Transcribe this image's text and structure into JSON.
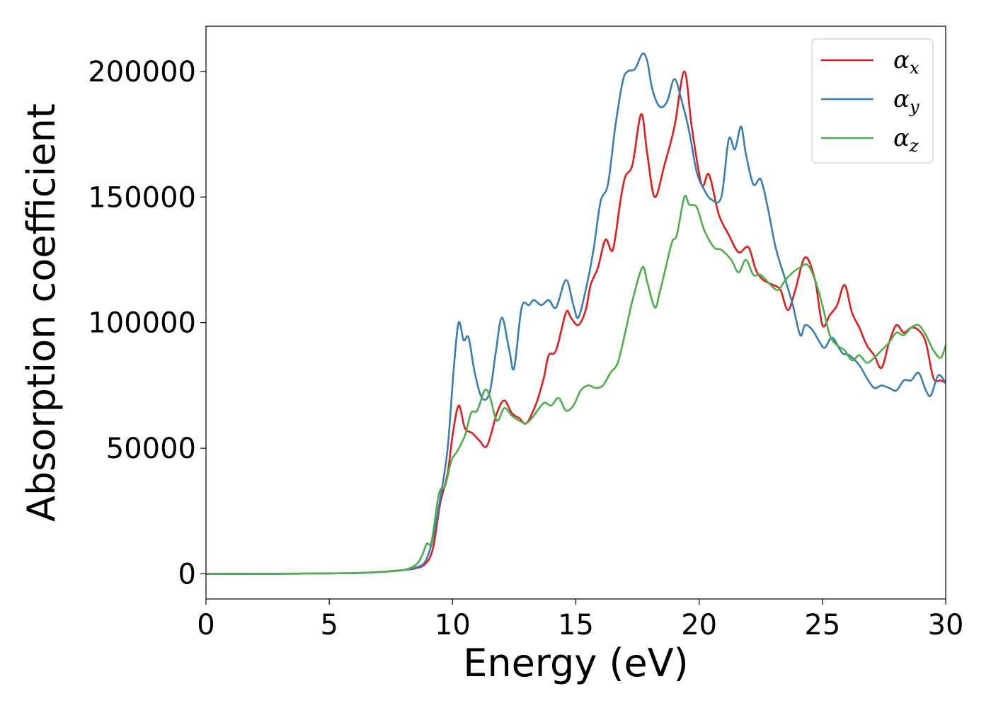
{
  "chart_data": {
    "type": "line",
    "title": "",
    "xlabel": "Energy (eV)",
    "ylabel": "Absorption coefficient",
    "xlim": [
      0,
      30
    ],
    "ylim": [
      -10000,
      218000
    ],
    "xticks": [
      0,
      5,
      10,
      15,
      20,
      25,
      30
    ],
    "yticks": [
      0,
      50000,
      100000,
      150000,
      200000
    ],
    "grid": false,
    "legend_position": "top-right",
    "series": [
      {
        "name": "α_x",
        "label_main": "α",
        "label_sub": "x",
        "color": "#e41a1c",
        "points": [
          [
            0,
            0
          ],
          [
            2,
            0
          ],
          [
            4,
            100
          ],
          [
            6,
            300
          ],
          [
            7,
            700
          ],
          [
            8,
            1500
          ],
          [
            8.5,
            2200
          ],
          [
            8.9,
            4000
          ],
          [
            9.2,
            10000
          ],
          [
            9.5,
            28000
          ],
          [
            9.8,
            40000
          ],
          [
            10.0,
            55000
          ],
          [
            10.25,
            67000
          ],
          [
            10.5,
            58000
          ],
          [
            10.8,
            56000
          ],
          [
            11.1,
            53000
          ],
          [
            11.4,
            51000
          ],
          [
            11.8,
            64000
          ],
          [
            12.1,
            69000
          ],
          [
            12.4,
            64000
          ],
          [
            12.7,
            62000
          ],
          [
            13.0,
            60000
          ],
          [
            13.4,
            68000
          ],
          [
            13.7,
            78000
          ],
          [
            13.9,
            87000
          ],
          [
            14.2,
            89000
          ],
          [
            14.6,
            104000
          ],
          [
            14.8,
            102000
          ],
          [
            15.1,
            99000
          ],
          [
            15.4,
            105000
          ],
          [
            15.6,
            115000
          ],
          [
            15.9,
            122000
          ],
          [
            16.2,
            133000
          ],
          [
            16.5,
            129000
          ],
          [
            16.8,
            148000
          ],
          [
            17.0,
            158000
          ],
          [
            17.3,
            163000
          ],
          [
            17.65,
            183000
          ],
          [
            17.9,
            167000
          ],
          [
            18.2,
            150000
          ],
          [
            18.6,
            163000
          ],
          [
            19.0,
            178000
          ],
          [
            19.4,
            200000
          ],
          [
            19.7,
            178000
          ],
          [
            20.1,
            155000
          ],
          [
            20.4,
            159000
          ],
          [
            20.8,
            143000
          ],
          [
            21.2,
            135000
          ],
          [
            21.6,
            128000
          ],
          [
            22.0,
            130000
          ],
          [
            22.3,
            121000
          ],
          [
            22.6,
            117000
          ],
          [
            23.0,
            115000
          ],
          [
            23.3,
            113000
          ],
          [
            23.6,
            105000
          ],
          [
            23.9,
            113000
          ],
          [
            24.3,
            126000
          ],
          [
            24.7,
            117000
          ],
          [
            25.0,
            99000
          ],
          [
            25.3,
            103000
          ],
          [
            25.6,
            107000
          ],
          [
            25.9,
            115000
          ],
          [
            26.2,
            104000
          ],
          [
            26.5,
            98000
          ],
          [
            26.8,
            91000
          ],
          [
            27.1,
            87000
          ],
          [
            27.4,
            82000
          ],
          [
            27.7,
            92000
          ],
          [
            28.0,
            99000
          ],
          [
            28.3,
            96000
          ],
          [
            28.6,
            98000
          ],
          [
            28.9,
            97000
          ],
          [
            29.2,
            92000
          ],
          [
            29.5,
            78000
          ],
          [
            29.8,
            77000
          ],
          [
            30.0,
            76000
          ]
        ]
      },
      {
        "name": "α_y",
        "label_main": "α",
        "label_sub": "y",
        "color": "#377eb8",
        "points": [
          [
            0,
            0
          ],
          [
            2,
            0
          ],
          [
            4,
            100
          ],
          [
            6,
            300
          ],
          [
            7,
            700
          ],
          [
            8,
            1500
          ],
          [
            8.5,
            2500
          ],
          [
            8.9,
            5000
          ],
          [
            9.2,
            14000
          ],
          [
            9.5,
            30000
          ],
          [
            9.8,
            50000
          ],
          [
            10.05,
            82000
          ],
          [
            10.25,
            100000
          ],
          [
            10.45,
            93000
          ],
          [
            10.65,
            94000
          ],
          [
            10.9,
            80000
          ],
          [
            11.2,
            70000
          ],
          [
            11.5,
            72000
          ],
          [
            11.75,
            88000
          ],
          [
            12.0,
            102000
          ],
          [
            12.3,
            89000
          ],
          [
            12.5,
            82000
          ],
          [
            12.8,
            106000
          ],
          [
            13.1,
            107000
          ],
          [
            13.3,
            109000
          ],
          [
            13.6,
            107000
          ],
          [
            13.9,
            109000
          ],
          [
            14.2,
            106000
          ],
          [
            14.6,
            117000
          ],
          [
            14.9,
            107000
          ],
          [
            15.1,
            102000
          ],
          [
            15.4,
            113000
          ],
          [
            15.7,
            128000
          ],
          [
            16.0,
            148000
          ],
          [
            16.3,
            155000
          ],
          [
            16.6,
            178000
          ],
          [
            16.9,
            196000
          ],
          [
            17.1,
            200000
          ],
          [
            17.4,
            201000
          ],
          [
            17.7,
            207000
          ],
          [
            17.9,
            204000
          ],
          [
            18.1,
            193000
          ],
          [
            18.4,
            186000
          ],
          [
            18.7,
            188000
          ],
          [
            19.0,
            197000
          ],
          [
            19.3,
            188000
          ],
          [
            19.6,
            176000
          ],
          [
            19.9,
            160000
          ],
          [
            20.2,
            153000
          ],
          [
            20.5,
            149000
          ],
          [
            20.9,
            150000
          ],
          [
            21.2,
            173000
          ],
          [
            21.45,
            169000
          ],
          [
            21.7,
            178000
          ],
          [
            21.9,
            167000
          ],
          [
            22.2,
            155000
          ],
          [
            22.5,
            157000
          ],
          [
            22.8,
            145000
          ],
          [
            23.1,
            130000
          ],
          [
            23.5,
            117000
          ],
          [
            23.8,
            107000
          ],
          [
            24.1,
            95000
          ],
          [
            24.3,
            99000
          ],
          [
            24.6,
            97000
          ],
          [
            24.9,
            92000
          ],
          [
            25.1,
            90000
          ],
          [
            25.4,
            94000
          ],
          [
            25.8,
            88000
          ],
          [
            26.1,
            87000
          ],
          [
            26.5,
            83000
          ],
          [
            26.8,
            78000
          ],
          [
            27.1,
            74000
          ],
          [
            27.4,
            75000
          ],
          [
            27.7,
            74000
          ],
          [
            28.0,
            73000
          ],
          [
            28.3,
            77000
          ],
          [
            28.6,
            77000
          ],
          [
            28.9,
            80000
          ],
          [
            29.2,
            73000
          ],
          [
            29.4,
            71000
          ],
          [
            29.7,
            79000
          ],
          [
            30.0,
            76000
          ]
        ]
      },
      {
        "name": "α_z",
        "label_main": "α",
        "label_sub": "z",
        "color": "#4daf4a",
        "points": [
          [
            0,
            0
          ],
          [
            2,
            0
          ],
          [
            4,
            100
          ],
          [
            6,
            300
          ],
          [
            7,
            700
          ],
          [
            8,
            1500
          ],
          [
            8.5,
            3500
          ],
          [
            8.75,
            7000
          ],
          [
            8.95,
            12000
          ],
          [
            9.15,
            13000
          ],
          [
            9.45,
            32000
          ],
          [
            9.7,
            35000
          ],
          [
            9.95,
            45000
          ],
          [
            10.2,
            49000
          ],
          [
            10.5,
            55000
          ],
          [
            10.75,
            64000
          ],
          [
            11.0,
            65000
          ],
          [
            11.3,
            73000
          ],
          [
            11.5,
            71000
          ],
          [
            11.8,
            61000
          ],
          [
            12.1,
            66000
          ],
          [
            12.4,
            63000
          ],
          [
            12.7,
            61000
          ],
          [
            13.0,
            60000
          ],
          [
            13.3,
            63000
          ],
          [
            13.7,
            68000
          ],
          [
            14.0,
            67000
          ],
          [
            14.3,
            70000
          ],
          [
            14.6,
            65000
          ],
          [
            14.9,
            67000
          ],
          [
            15.2,
            73000
          ],
          [
            15.5,
            75000
          ],
          [
            15.8,
            74000
          ],
          [
            16.1,
            75000
          ],
          [
            16.4,
            80000
          ],
          [
            16.7,
            84000
          ],
          [
            17.0,
            96000
          ],
          [
            17.3,
            109000
          ],
          [
            17.7,
            122000
          ],
          [
            17.9,
            116000
          ],
          [
            18.2,
            106000
          ],
          [
            18.4,
            112000
          ],
          [
            18.6,
            120000
          ],
          [
            18.9,
            132000
          ],
          [
            19.1,
            135000
          ],
          [
            19.4,
            150000
          ],
          [
            19.6,
            147000
          ],
          [
            19.9,
            146000
          ],
          [
            20.2,
            137000
          ],
          [
            20.6,
            130000
          ],
          [
            20.9,
            129000
          ],
          [
            21.3,
            125000
          ],
          [
            21.6,
            120000
          ],
          [
            21.9,
            125000
          ],
          [
            22.2,
            119000
          ],
          [
            22.5,
            119000
          ],
          [
            22.9,
            115000
          ],
          [
            23.2,
            113000
          ],
          [
            23.5,
            117000
          ],
          [
            23.8,
            120000
          ],
          [
            24.1,
            122000
          ],
          [
            24.4,
            123000
          ],
          [
            24.7,
            117000
          ],
          [
            25.0,
            107000
          ],
          [
            25.3,
            95000
          ],
          [
            25.6,
            91000
          ],
          [
            25.9,
            89000
          ],
          [
            26.2,
            85000
          ],
          [
            26.5,
            87000
          ],
          [
            26.8,
            84000
          ],
          [
            27.1,
            86000
          ],
          [
            27.4,
            89000
          ],
          [
            27.7,
            92000
          ],
          [
            28.0,
            96000
          ],
          [
            28.3,
            95000
          ],
          [
            28.6,
            98000
          ],
          [
            28.9,
            99000
          ],
          [
            29.2,
            95000
          ],
          [
            29.5,
            89000
          ],
          [
            29.8,
            86000
          ],
          [
            30.0,
            91000
          ]
        ]
      }
    ]
  }
}
